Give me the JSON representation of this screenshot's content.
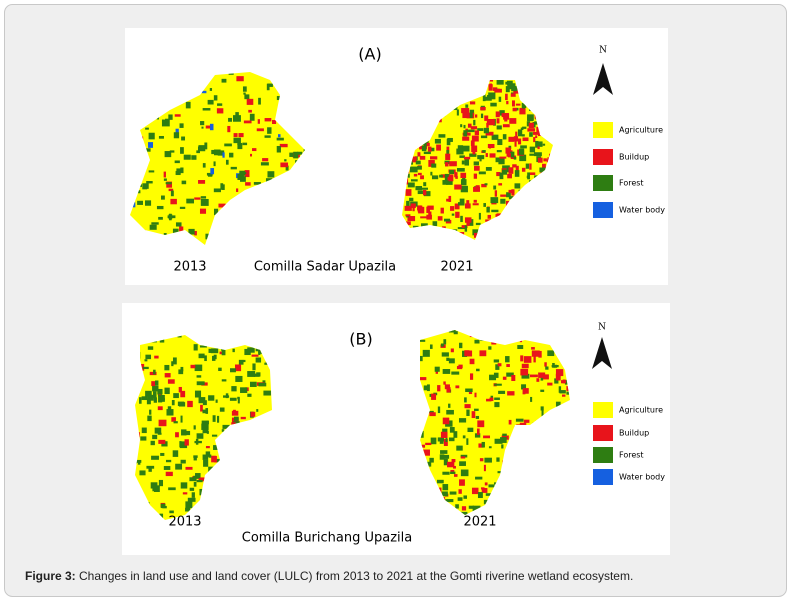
{
  "panels": [
    {
      "label": "(A)",
      "north": "N",
      "years": [
        "2013",
        "2021"
      ],
      "area": "Comilla Sadar Upazila",
      "legend": [
        {
          "name": "Agriculture",
          "color": "#ffff00"
        },
        {
          "name": "Buildup",
          "color": "#e8141b"
        },
        {
          "name": "Forest",
          "color": "#2e7d12"
        },
        {
          "name": "Water body",
          "color": "#1560e0"
        }
      ]
    },
    {
      "label": "(B)",
      "north": "N",
      "years": [
        "2013",
        "2021"
      ],
      "area": "Comilla Burichang Upazila",
      "legend": [
        {
          "name": "Agriculture",
          "color": "#ffff00"
        },
        {
          "name": "Buildup",
          "color": "#e8141b"
        },
        {
          "name": "Forest",
          "color": "#2e7d12"
        },
        {
          "name": "Water body",
          "color": "#1560e0"
        }
      ]
    }
  ],
  "caption": {
    "label": "Figure 3:",
    "text": " Changes in land use and land cover (LULC) from 2013 to 2021 at the Gomti riverine wetland ecosystem."
  }
}
